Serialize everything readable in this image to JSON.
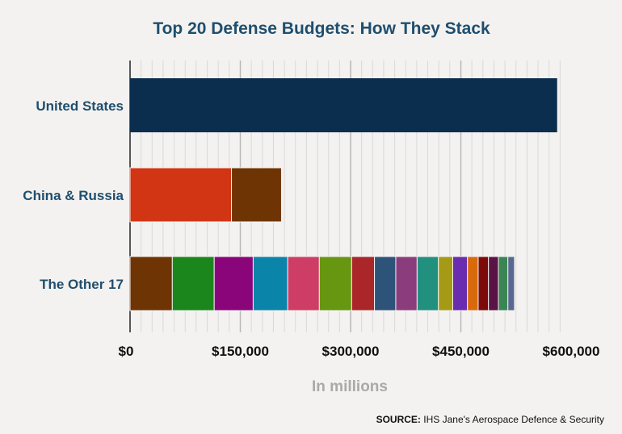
{
  "chart_data": {
    "type": "bar",
    "orientation": "horizontal",
    "stacked": true,
    "title": "Top 20 Defense Budgets: How They Stack",
    "xlabel": "In millions",
    "ylabel": "",
    "xlim": [
      0,
      650000
    ],
    "x_ticks": [
      0,
      150000,
      300000,
      450000,
      600000
    ],
    "x_tick_labels": [
      "$0",
      "$150,000",
      "$300,000",
      "$450,000",
      "$600,000"
    ],
    "grid": true,
    "categories": [
      "United States",
      "China & Russia",
      "The Other 17"
    ],
    "bars": [
      {
        "category": "United States",
        "segments": [
          {
            "value": 581000,
            "color": "#0b2e4f"
          }
        ]
      },
      {
        "category": "China & Russia",
        "segments": [
          {
            "value": 138000,
            "color": "#d13513"
          },
          {
            "value": 68000,
            "color": "#6f3404"
          }
        ]
      },
      {
        "category": "The Other 17",
        "segments": [
          {
            "value": 57500,
            "color": "#6f3404"
          },
          {
            "value": 57000,
            "color": "#1b861c"
          },
          {
            "value": 53000,
            "color": "#8a057a"
          },
          {
            "value": 47000,
            "color": "#0a84a8"
          },
          {
            "value": 43000,
            "color": "#cd3d66"
          },
          {
            "value": 44000,
            "color": "#679611"
          },
          {
            "value": 31000,
            "color": "#aa2628"
          },
          {
            "value": 29000,
            "color": "#2e5378"
          },
          {
            "value": 29000,
            "color": "#8b3c7d"
          },
          {
            "value": 29000,
            "color": "#22907f"
          },
          {
            "value": 19500,
            "color": "#a59a16"
          },
          {
            "value": 20000,
            "color": "#6a2db0"
          },
          {
            "value": 14600,
            "color": "#d96a0c"
          },
          {
            "value": 14000,
            "color": "#7d0a0a"
          },
          {
            "value": 13500,
            "color": "#591345"
          },
          {
            "value": 12900,
            "color": "#3a8553"
          },
          {
            "value": 9000,
            "color": "#5a6891"
          }
        ]
      }
    ]
  },
  "source": {
    "label": "SOURCE:",
    "text": " IHS Jane's Aerospace Defence & Security"
  }
}
